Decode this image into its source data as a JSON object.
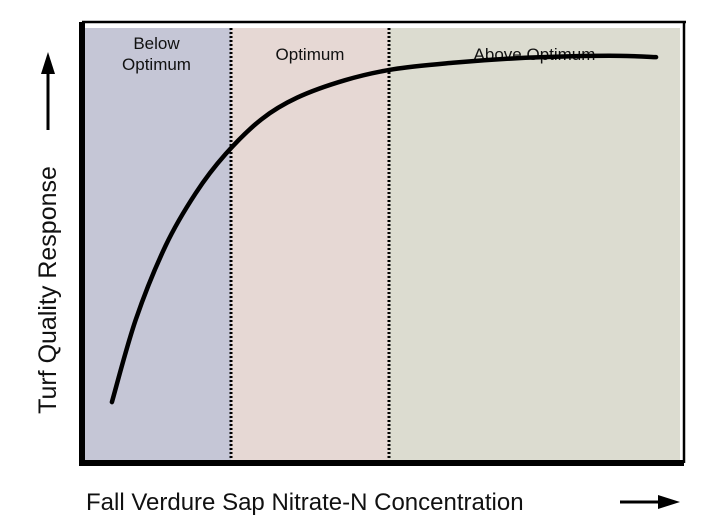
{
  "chart_data": {
    "type": "line",
    "xlabel": "Fall Verdure Sap Nitrate-N Concentration",
    "ylabel": "Turf Quality Response",
    "ticks": "none",
    "grid": false,
    "legend": "none",
    "zones": [
      {
        "name": "Below Optimum",
        "lines": [
          "Below",
          "Optimum"
        ],
        "color": "#c5c6d6"
      },
      {
        "name": "Optimum",
        "lines": [
          "Optimum"
        ],
        "color": "#e6d8d4"
      },
      {
        "name": "Above Optimum",
        "lines": [
          "Above Optimum"
        ],
        "color": "#dcdcd0"
      }
    ],
    "series": [
      {
        "style": "solid",
        "color": "#000000",
        "x": [
          0.05,
          0.09,
          0.14,
          0.19,
          0.24,
          0.3,
          0.36,
          0.44,
          0.52,
          0.62,
          0.72,
          0.82,
          0.9,
          0.96
        ],
        "y": [
          0.14,
          0.33,
          0.5,
          0.62,
          0.71,
          0.79,
          0.84,
          0.88,
          0.905,
          0.92,
          0.93,
          0.935,
          0.936,
          0.933
        ]
      }
    ],
    "xlim": [
      0,
      1
    ],
    "ylim": [
      0,
      1
    ]
  }
}
